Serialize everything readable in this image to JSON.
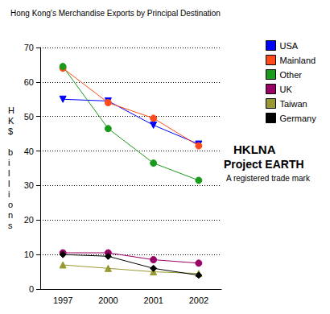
{
  "chart_data": {
    "type": "line",
    "title": "Hong Kong's Merchandise Exports by Principal Destination",
    "y_label": "HK$ billions",
    "categories": [
      "1997",
      "2000",
      "2001",
      "2002"
    ],
    "series": [
      {
        "name": "USA",
        "color": "#0000ff",
        "marker": "triangle-down",
        "values": [
          55,
          54.5,
          47.5,
          42
        ]
      },
      {
        "name": "Mainland",
        "color": "#ff4a1a",
        "marker": "circle",
        "values": [
          64,
          54,
          49.5,
          41.5
        ]
      },
      {
        "name": "Other",
        "color": "#1a9a1a",
        "marker": "circle",
        "values": [
          64.5,
          46.5,
          36.5,
          31.5
        ]
      },
      {
        "name": "UK",
        "color": "#990066",
        "marker": "circle",
        "values": [
          10.5,
          10.5,
          8.5,
          7.5
        ]
      },
      {
        "name": "Taiwan",
        "color": "#999933",
        "marker": "triangle",
        "values": [
          7,
          6,
          5,
          4.5
        ]
      },
      {
        "name": "Germany",
        "color": "#000000",
        "marker": "diamond",
        "values": [
          10,
          9.5,
          6,
          4
        ]
      }
    ],
    "ylim": [
      0,
      70
    ],
    "yticks": [
      0,
      10,
      20,
      30,
      40,
      50,
      60,
      70
    ],
    "grid": true,
    "legend": "right",
    "annotations": [
      "HKLNA",
      "Project EARTH",
      "A registered trade mark"
    ]
  }
}
